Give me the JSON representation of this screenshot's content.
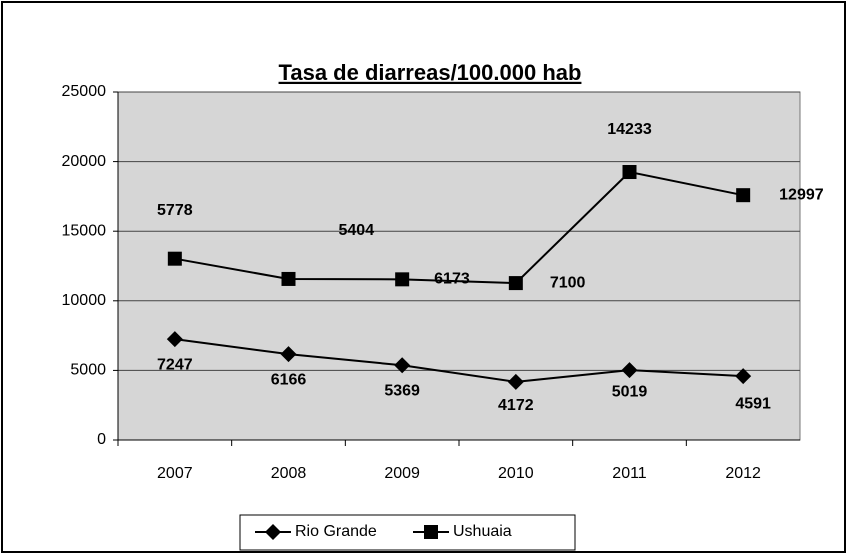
{
  "chart_data": {
    "type": "line",
    "stacked": true,
    "title": "Tasa de diarreas/100.000 hab",
    "categories": [
      "2007",
      "2008",
      "2009",
      "2010",
      "2011",
      "2012"
    ],
    "series": [
      {
        "name": "Rio Grande",
        "color": "#000000",
        "marker": "diamond",
        "values": [
          7247,
          6166,
          5369,
          4172,
          5019,
          4591
        ]
      },
      {
        "name": "Ushuaia",
        "color": "#000000",
        "marker": "square",
        "values": [
          5778,
          5404,
          6173,
          7100,
          14233,
          12997
        ]
      }
    ],
    "ylim": [
      0,
      25000
    ],
    "yticks": [
      0,
      5000,
      10000,
      15000,
      20000,
      25000
    ],
    "grid": true,
    "legend": "bottom"
  }
}
